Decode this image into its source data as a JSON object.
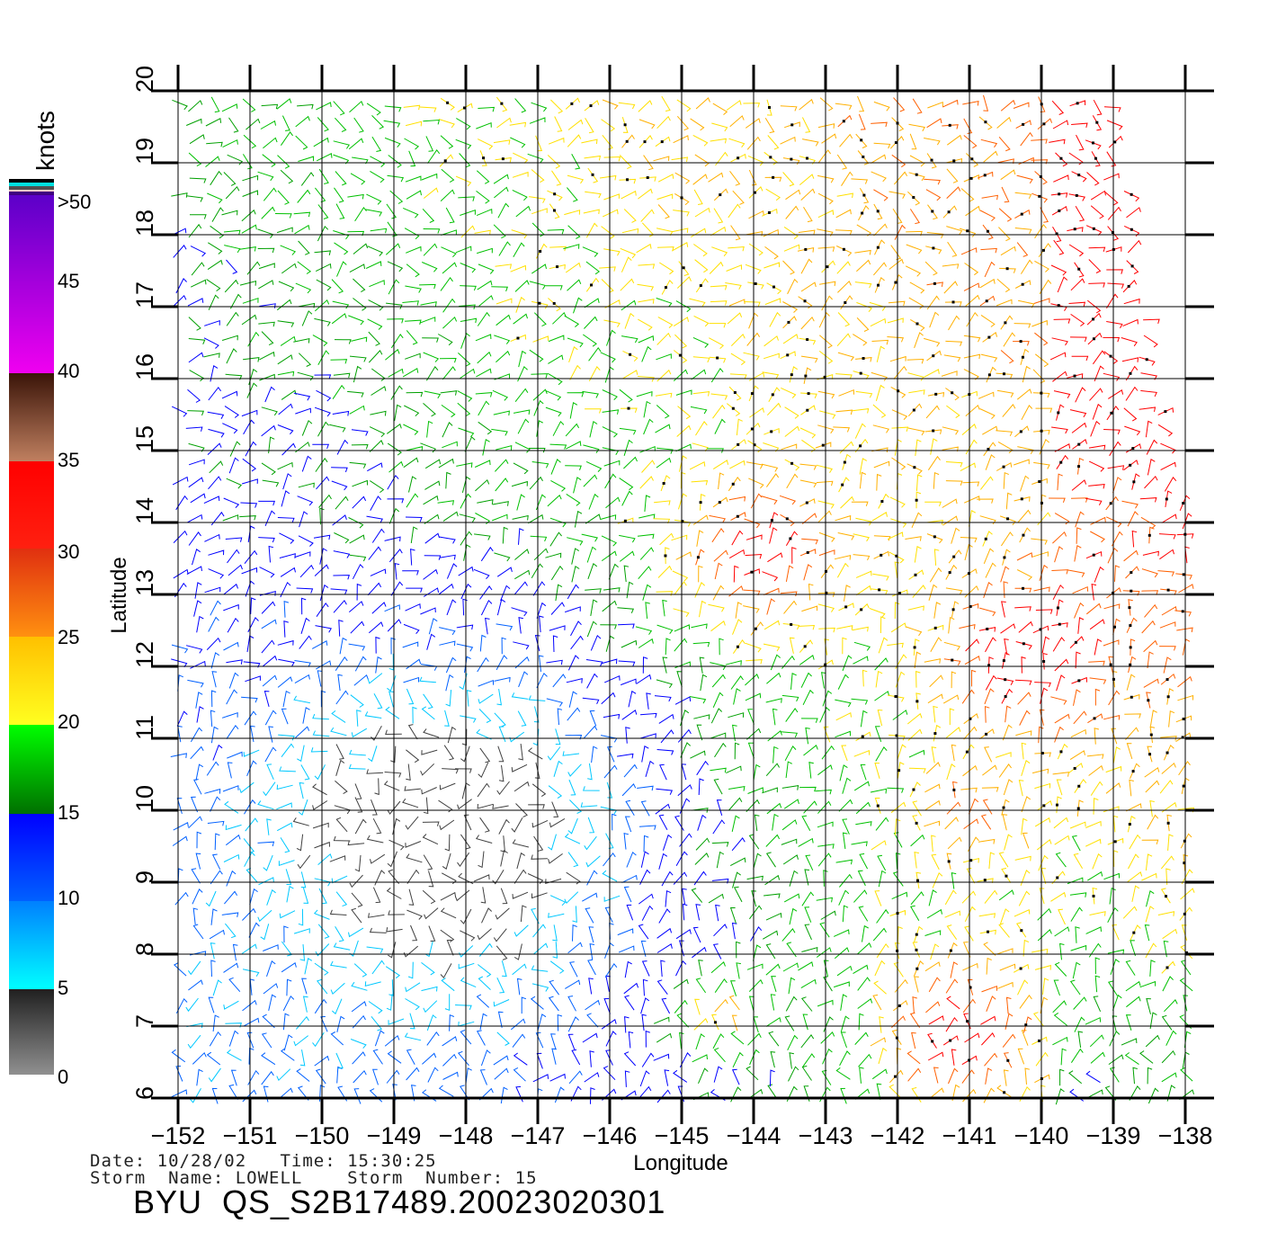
{
  "chart_data": {
    "type": "wind-vector-map",
    "xlabel": "Longitude",
    "ylabel": "Latitude",
    "xlim": [
      -152,
      -138
    ],
    "ylim": [
      6,
      20
    ],
    "x_ticks": [
      "-152",
      "-151",
      "-150",
      "-149",
      "-148",
      "-147",
      "-146",
      "-145",
      "-144",
      "-143",
      "-142",
      "-141",
      "-140",
      "-139",
      "-138"
    ],
    "y_ticks": [
      "6",
      "7",
      "8",
      "9",
      "10",
      "11",
      "12",
      "13",
      "14",
      "15",
      "16",
      "17",
      "18",
      "19",
      "20"
    ],
    "grid": true
  },
  "colorbar": {
    "unit_label": "knots",
    "labels": [
      ">50",
      "45",
      "40",
      "35",
      "30",
      "25",
      "20",
      "15",
      "10",
      "5",
      "0"
    ],
    "bands": [
      {
        "range": "40-50",
        "colors": [
          "#5a00c8",
          "#f000f0"
        ]
      },
      {
        "range": "35-40",
        "colors": [
          "#3a1408",
          "#c08060"
        ]
      },
      {
        "range": "30-35",
        "colors": [
          "#ff0000",
          "#ff2010"
        ]
      },
      {
        "range": "25-30",
        "colors": [
          "#e03010",
          "#ff9010"
        ]
      },
      {
        "range": "20-25",
        "colors": [
          "#ffc000",
          "#ffff20"
        ]
      },
      {
        "range": "15-20",
        "colors": [
          "#00ff00",
          "#007000"
        ]
      },
      {
        "range": "10-15",
        "colors": [
          "#0000ff",
          "#0060ff"
        ]
      },
      {
        "range": "5-10",
        "colors": [
          "#0080ff",
          "#00ffff"
        ]
      },
      {
        "range": "0-5",
        "colors": [
          "#202020",
          "#909090"
        ]
      }
    ]
  },
  "info": {
    "date_line": "Date: 10/28/02   Time: 15:30:25",
    "storm_line": "Storm  Name: LOWELL    Storm  Number: 15",
    "title": "BYU  QS_S2B17489.20023020301"
  }
}
